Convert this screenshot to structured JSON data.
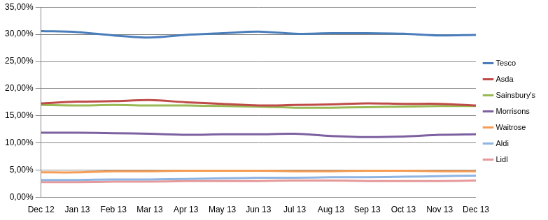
{
  "chart_data": {
    "type": "line",
    "categories": [
      "Dec 12",
      "Jan 13",
      "Feb 13",
      "Mar 13",
      "Apr 13",
      "May 13",
      "Jun 13",
      "Jul 13",
      "Aug 13",
      "Sep 13",
      "Oct 13",
      "Nov 13",
      "Dec 13"
    ],
    "series": [
      {
        "name": "Tesco",
        "color": "#4a7ebb",
        "values": [
          30.6,
          30.4,
          29.8,
          29.4,
          29.9,
          30.2,
          30.5,
          30.1,
          30.2,
          30.2,
          30.1,
          29.8,
          29.9
        ]
      },
      {
        "name": "Asda",
        "color": "#be4b48",
        "values": [
          17.3,
          17.6,
          17.7,
          17.9,
          17.5,
          17.2,
          16.9,
          17.0,
          17.1,
          17.3,
          17.2,
          17.2,
          16.9
        ]
      },
      {
        "name": "Sainsbury's",
        "color": "#98b954",
        "values": [
          17.0,
          16.9,
          17.0,
          16.9,
          16.9,
          16.8,
          16.7,
          16.5,
          16.5,
          16.6,
          16.7,
          16.8,
          16.8
        ]
      },
      {
        "name": "Morrisons",
        "color": "#7d60a0",
        "values": [
          11.9,
          11.9,
          11.8,
          11.7,
          11.5,
          11.6,
          11.6,
          11.7,
          11.3,
          11.1,
          11.2,
          11.5,
          11.6
        ]
      },
      {
        "name": "Waitrose",
        "color": "#f59d56",
        "values": [
          4.6,
          4.6,
          4.8,
          4.8,
          4.9,
          4.9,
          4.9,
          4.8,
          4.8,
          4.9,
          4.9,
          4.8,
          4.8
        ]
      },
      {
        "name": "Aldi",
        "color": "#8eb4e3",
        "values": [
          3.2,
          3.2,
          3.3,
          3.3,
          3.4,
          3.5,
          3.6,
          3.6,
          3.7,
          3.7,
          3.8,
          3.9,
          4.0
        ]
      },
      {
        "name": "Lidl",
        "color": "#e6999a",
        "values": [
          2.8,
          2.8,
          2.9,
          2.9,
          3.0,
          3.0,
          3.0,
          3.1,
          3.1,
          3.0,
          3.0,
          3.0,
          3.1
        ]
      }
    ],
    "ylim": [
      0,
      35
    ],
    "yticks": [
      {
        "value": 0,
        "label": "0,00%"
      },
      {
        "value": 5,
        "label": "5,00%"
      },
      {
        "value": 10,
        "label": "10,00%"
      },
      {
        "value": 15,
        "label": "15,00%"
      },
      {
        "value": 20,
        "label": "20,00%"
      },
      {
        "value": 25,
        "label": "25,00%"
      },
      {
        "value": 30,
        "label": "30,00%"
      },
      {
        "value": 35,
        "label": "35,00%"
      }
    ],
    "grid": true,
    "legend": "right",
    "marker": "none"
  }
}
